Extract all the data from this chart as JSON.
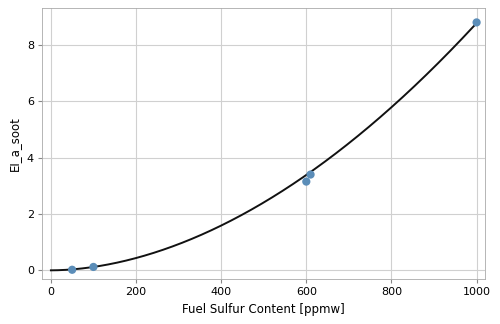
{
  "scatter_x": [
    50,
    100,
    600,
    610,
    1000
  ],
  "scatter_y": [
    0.02,
    0.12,
    3.15,
    3.4,
    8.8
  ],
  "curve_x_min": 0,
  "curve_x_max": 1000,
  "xlabel": "Fuel Sulfur Content [ppmw]",
  "ylabel": "EI_a_soot",
  "xlim": [
    -20,
    1020
  ],
  "ylim": [
    -0.3,
    9.3
  ],
  "yticks": [
    0,
    2,
    4,
    6,
    8
  ],
  "xticks": [
    0,
    200,
    400,
    600,
    800,
    1000
  ],
  "scatter_color": "#5B8DB8",
  "scatter_size": 35,
  "line_color": "#111111",
  "line_width": 1.4,
  "grid_color": "#d0d0d0",
  "background_color": "#ffffff",
  "power": 1.865,
  "coeff": 2.23e-05
}
